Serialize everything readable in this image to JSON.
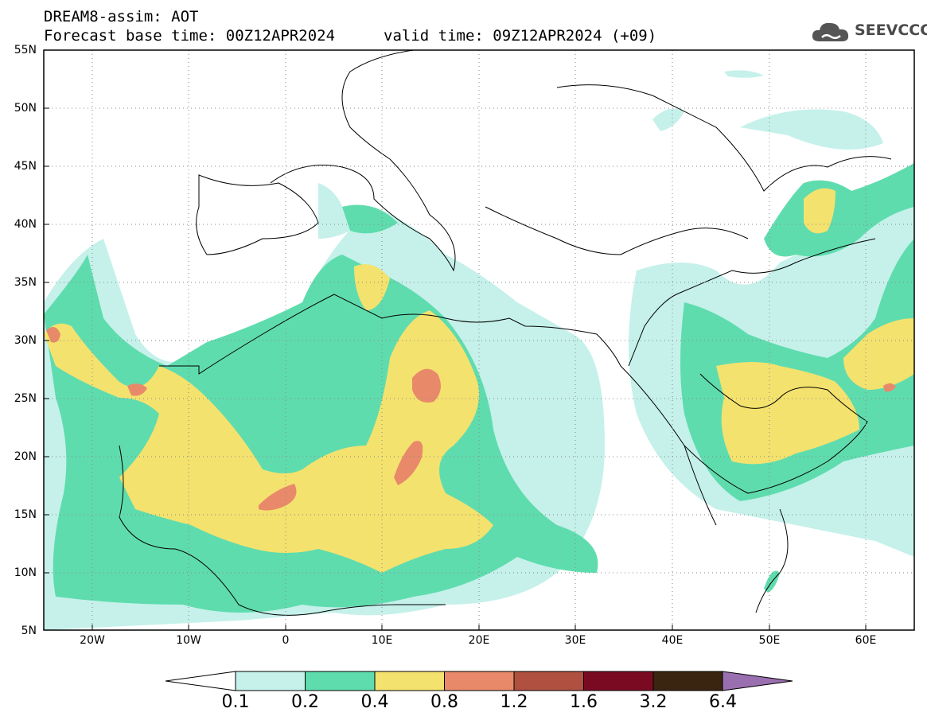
{
  "header": {
    "model_title": "DREAM8-assim: AOT",
    "base_time": "Forecast base time: 00Z12APR2024",
    "valid_time": "valid time: 09Z12APR2024 (+09)"
  },
  "logo": {
    "text": "SEEVCCC",
    "icon": "cloud-icon"
  },
  "map": {
    "region": "North Africa, Europe, Middle East",
    "lon_range": [
      -25,
      65
    ],
    "lat_range": [
      5,
      55
    ],
    "y_ticks": [
      "55N",
      "50N",
      "45N",
      "40N",
      "35N",
      "30N",
      "25N",
      "20N",
      "15N",
      "10N",
      "5N"
    ],
    "x_ticks": [
      "20W",
      "10W",
      "0",
      "10E",
      "20E",
      "30E",
      "40E",
      "50E",
      "60E"
    ],
    "grid": "dotted"
  },
  "colorbar": {
    "levels": [
      "0.1",
      "0.2",
      "0.4",
      "0.8",
      "1.2",
      "1.6",
      "3.2",
      "6.4"
    ],
    "colors": [
      "#c5f1ea",
      "#5fdcae",
      "#f4e26e",
      "#e88a6a",
      "#b05040",
      "#7a0a22",
      "#3a2510",
      "#9a6fb0"
    ]
  }
}
